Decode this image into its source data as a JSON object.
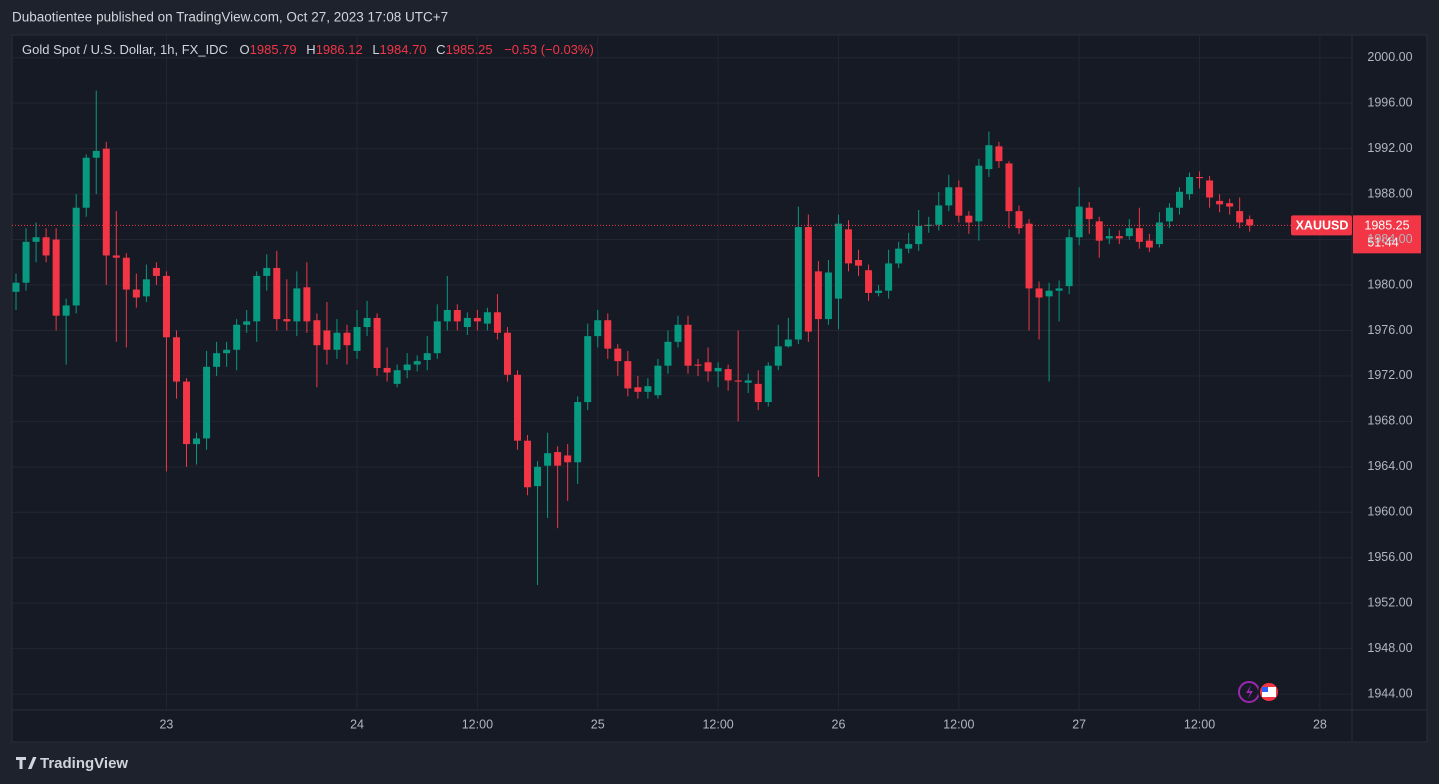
{
  "header": {
    "publisher_line": "Dubaotientee published on TradingView.com, Oct 27, 2023 17:08 UTC+7"
  },
  "legend": {
    "symbol": "Gold Spot / U.S. Dollar, 1h, FX_IDC",
    "o_label": "O",
    "o": "1985.79",
    "h_label": "H",
    "h": "1986.12",
    "l_label": "L",
    "l": "1984.70",
    "c_label": "C",
    "c": "1985.25",
    "change": "−0.53 (−0.03%)"
  },
  "price_tag": {
    "symbol": "XAUUSD",
    "price": "1985.25",
    "countdown": "51:44"
  },
  "footer": {
    "brand": "TradingView"
  },
  "chart_data": {
    "type": "candlestick",
    "up_color": "#089981",
    "down_color": "#f23645",
    "grid": true,
    "ylim": [
      1942.6,
      2002
    ],
    "yticks": [
      {
        "value": 1944,
        "label": "1944.00"
      },
      {
        "value": 1948,
        "label": "1948.00"
      },
      {
        "value": 1952,
        "label": "1952.00"
      },
      {
        "value": 1956,
        "label": "1956.00"
      },
      {
        "value": 1960,
        "label": "1960.00"
      },
      {
        "value": 1964,
        "label": "1964.00"
      },
      {
        "value": 1968,
        "label": "1968.00"
      },
      {
        "value": 1972,
        "label": "1972.00"
      },
      {
        "value": 1976,
        "label": "1976.00"
      },
      {
        "value": 1980,
        "label": "1980.00"
      },
      {
        "value": 1984,
        "label": "1984.00"
      },
      {
        "value": 1988,
        "label": "1988.00"
      },
      {
        "value": 1992,
        "label": "1992.00"
      },
      {
        "value": 1996,
        "label": "1996.00"
      },
      {
        "value": 2000,
        "label": "2000.00"
      }
    ],
    "categories": [
      null,
      null,
      null,
      null,
      null,
      null,
      null,
      null,
      null,
      null,
      null,
      null,
      null,
      null,
      null,
      "23",
      null,
      null,
      null,
      null,
      null,
      null,
      null,
      null,
      null,
      null,
      null,
      null,
      null,
      null,
      null,
      null,
      null,
      null,
      "24",
      null,
      null,
      null,
      null,
      null,
      null,
      null,
      null,
      null,
      null,
      null,
      "12:00",
      null,
      null,
      null,
      null,
      null,
      null,
      null,
      null,
      null,
      null,
      null,
      "25",
      null,
      null,
      null,
      null,
      null,
      null,
      null,
      null,
      null,
      null,
      null,
      "12:00",
      null,
      null,
      null,
      null,
      null,
      null,
      null,
      null,
      null,
      null,
      null,
      "26",
      null,
      null,
      null,
      null,
      null,
      null,
      null,
      null,
      null,
      null,
      null,
      "12:00",
      null,
      null,
      null,
      null,
      null,
      null,
      null,
      null,
      null,
      null,
      null,
      "27",
      null,
      null,
      null,
      null,
      null,
      null,
      null,
      null,
      null,
      null,
      null,
      "12:00",
      null,
      null,
      null,
      null,
      null,
      null,
      null,
      null,
      null,
      null,
      null,
      "28"
    ],
    "open": [
      1979.4,
      1980.2,
      1983.8,
      1984.2,
      1984,
      1977.3,
      1978.2,
      1986.8,
      1991.2,
      1992,
      1982.6,
      1982.4,
      1979.6,
      1979,
      1981.5,
      1980.8,
      1975.4,
      1971.5,
      1966,
      1966.5,
      1972.8,
      1974,
      1974.3,
      1976.5,
      1976.8,
      1980.8,
      1981.5,
      1977,
      1976.8,
      1979.8,
      1976.9,
      1976,
      1974.3,
      1975.8,
      1974.2,
      1976.3,
      1977.1,
      1972.7,
      1971.3,
      1972.5,
      1973,
      1973.4,
      1974,
      1976.8,
      1977.8,
      1976.3,
      1977.1,
      1976.6,
      1977.6,
      1975.8,
      1972.1,
      1966.3,
      1962.3,
      1964.1,
      1965.3,
      1965,
      1964.4,
      1969.7,
      1975.5,
      1976.9,
      1974.4,
      1973.3,
      1971,
      1970.6,
      1970.3,
      1972.9,
      1975,
      1976.5,
      1973,
      1973.2,
      1972.4,
      1972.6,
      1971.6,
      1971.4,
      1971.3,
      1969.7,
      1972.9,
      1974.6,
      1975.2,
      1985.1,
      1981.2,
      1977,
      1978.8,
      1984.9,
      1982.2,
      1981.3,
      1979.3,
      1979.5,
      1981.9,
      1983.2,
      1983.6,
      1985.2,
      1985.3,
      1987,
      1988.6,
      1986.1,
      1985.6,
      1990.2,
      1992.2,
      1990.7,
      1986.5,
      1985.4,
      1979.7,
      1979,
      1979.5,
      1979.9,
      1984.2,
      1986.8,
      1985.6,
      1984.1,
      1984.3,
      1984.3,
      1985,
      1983.9,
      1983.6,
      1985.6,
      1986.8,
      1988,
      1989.5,
      1989.2,
      1987.4,
      1987.2,
      1986.5,
      1985.79,
      null,
      null,
      null,
      null,
      null,
      null,
      null
    ],
    "high": [
      1981,
      1985,
      1985.5,
      1985,
      1985,
      1978.8,
      1988,
      1991.5,
      1997.1,
      1992.6,
      1986.5,
      1982.8,
      1981,
      1981.8,
      1982,
      1981.2,
      1976,
      1971.8,
      1967,
      1974.2,
      1975,
      1975,
      1977,
      1977.8,
      1981.2,
      1982.7,
      1983,
      1980.5,
      1981.2,
      1982,
      1977.5,
      1978.5,
      1977,
      1976.5,
      1977.8,
      1978.6,
      1977.5,
      1974.5,
      1973,
      1974,
      1973.8,
      1975.5,
      1978.3,
      1980.8,
      1978.3,
      1977.6,
      1977.8,
      1978,
      1979.2,
      1976.3,
      1972.5,
      1966.8,
      1964.5,
      1967,
      1965.8,
      1966,
      1970.2,
      1976.6,
      1977.8,
      1977.5,
      1974.8,
      1974.2,
      1972,
      1971.8,
      1973.5,
      1976,
      1977.3,
      1977.3,
      1973.5,
      1974.5,
      1973.2,
      1973,
      1976,
      1972.2,
      1972.5,
      1973.2,
      1976.5,
      1977.1,
      1986.9,
      1986.2,
      1982.1,
      1982.2,
      1986.2,
      1985.7,
      1983.1,
      1981.8,
      1980,
      1983.1,
      1983.8,
      1984.6,
      1986.6,
      1986,
      1988.2,
      1989.7,
      1989.2,
      1986.5,
      1991.1,
      1993.5,
      1992.6,
      1990.9,
      1987,
      1985.8,
      1980.3,
      1980.2,
      1980.4,
      1984.9,
      1988.6,
      1987.3,
      1986,
      1985,
      1984.8,
      1985.8,
      1986.8,
      1984.5,
      1986.4,
      1987.2,
      1988.6,
      1989.9,
      1990,
      1989.6,
      1988,
      1987.6,
      1987.7,
      1986.12,
      null,
      null,
      null,
      null,
      null,
      null,
      null
    ],
    "low": [
      1977.8,
      1979.5,
      1982,
      1982,
      1976,
      1973,
      1977.5,
      1986,
      1988,
      1980,
      1975,
      1974.5,
      1978,
      1978.5,
      1980,
      1963.6,
      1970,
      1964,
      1964.2,
      1965.5,
      1972,
      1972.8,
      1972.5,
      1975.8,
      1975,
      1979.5,
      1976,
      1976,
      1975.5,
      1975.8,
      1971,
      1973,
      1973.5,
      1973,
      1973.5,
      1975.5,
      1972,
      1971.5,
      1971,
      1971.8,
      1972.4,
      1972.5,
      1973.5,
      1976,
      1976,
      1975.6,
      1976,
      1976,
      1975.2,
      1971.5,
      1965.5,
      1961.5,
      1953.6,
      1959.5,
      1958.6,
      1961,
      1962.5,
      1969,
      1974.5,
      1973.5,
      1972,
      1970.2,
      1970,
      1970,
      1970,
      1972.2,
      1974.5,
      1972.2,
      1972,
      1971.5,
      1971,
      1970.7,
      1968,
      1970.5,
      1969,
      1969.3,
      1972.5,
      1974.5,
      1974.8,
      1975,
      1963.1,
      1976.5,
      1976.1,
      1981.2,
      1980.8,
      1978.6,
      1979,
      1978.8,
      1981.5,
      1982.8,
      1983,
      1984.6,
      1984.8,
      1986.5,
      1985.5,
      1984.5,
      1983.9,
      1989.5,
      1990.3,
      1985,
      1984.5,
      1976,
      1975.2,
      1971.5,
      1976.8,
      1979.2,
      1983.5,
      1984.5,
      1982.4,
      1983.6,
      1983.6,
      1984,
      1983.2,
      1982.9,
      1983.3,
      1985,
      1986.2,
      1987.5,
      1988.5,
      1986.8,
      1986.4,
      1986.2,
      1985,
      1984.7,
      null,
      null,
      null,
      null,
      null,
      null,
      null
    ],
    "close": [
      1980.2,
      1983.8,
      1984.2,
      1982.6,
      1977.3,
      1978.2,
      1986.8,
      1991.2,
      1991.8,
      1982.6,
      1982.4,
      1979.6,
      1978.9,
      1980.5,
      1980.8,
      1975.4,
      1971.5,
      1966,
      1966.5,
      1972.8,
      1974,
      1974.3,
      1976.5,
      1976.8,
      1980.8,
      1981.5,
      1977,
      1976.8,
      1979.7,
      1976.8,
      1974.7,
      1974.3,
      1975.8,
      1974.7,
      1976.3,
      1977.1,
      1972.7,
      1972.3,
      1972.5,
      1973,
      1973.3,
      1974,
      1976.8,
      1977.8,
      1976.8,
      1977.1,
      1976.8,
      1977.6,
      1975.8,
      1972.1,
      1966.3,
      1962.2,
      1964,
      1965.2,
      1964.1,
      1964.4,
      1969.7,
      1975.5,
      1976.9,
      1974.4,
      1973.3,
      1970.9,
      1970.6,
      1971.1,
      1972.9,
      1975,
      1976.5,
      1972.9,
      1972.9,
      1972.4,
      1972.7,
      1971.6,
      1971.5,
      1971.6,
      1969.7,
      1972.9,
      1974.6,
      1975.2,
      1985.1,
      1975.9,
      1977,
      1981.1,
      1985.4,
      1981.9,
      1981.7,
      1979.3,
      1979.5,
      1981.9,
      1983.2,
      1983.6,
      1985.2,
      1985.3,
      1987,
      1988.6,
      1986.1,
      1985.5,
      1990.5,
      1992.3,
      1990.9,
      1986.5,
      1985,
      1979.7,
      1978.9,
      1979.5,
      1979.7,
      1984.2,
      1986.9,
      1985.8,
      1983.9,
      1984.3,
      1984.1,
      1985,
      1983.8,
      1983.3,
      1985.5,
      1986.8,
      1988.2,
      1989.5,
      1989.4,
      1987.7,
      1987.1,
      1986.9,
      1985.5,
      1985.25,
      null,
      null,
      null,
      null,
      null,
      null,
      null
    ]
  }
}
